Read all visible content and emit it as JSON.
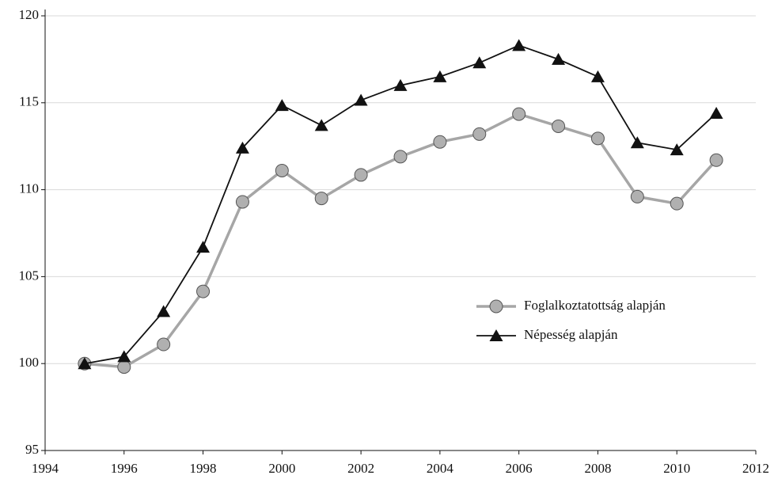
{
  "chart_data": {
    "type": "line",
    "x": [
      1995,
      1996,
      1997,
      1998,
      1999,
      2000,
      2001,
      2002,
      2003,
      2004,
      2005,
      2006,
      2007,
      2008,
      2009,
      2010,
      2011
    ],
    "series": [
      {
        "name": "Foglalkoztatottság alapján",
        "color": "#a6a6a6",
        "marker": "circle",
        "values": [
          100,
          99.8,
          101.1,
          104.15,
          109.3,
          111.1,
          109.5,
          110.85,
          111.9,
          112.75,
          113.2,
          114.35,
          113.65,
          112.95,
          109.6,
          109.2,
          111.7
        ]
      },
      {
        "name": "Népesség alapján",
        "color": "#111111",
        "marker": "triangle",
        "values": [
          100,
          100.4,
          103,
          106.7,
          112.4,
          114.85,
          113.7,
          115.15,
          116,
          116.5,
          117.3,
          118.3,
          117.5,
          116.5,
          112.7,
          112.3,
          114.4
        ]
      }
    ],
    "xlim": [
      1994,
      2012
    ],
    "xticks": [
      1994,
      1996,
      1998,
      2000,
      2002,
      2004,
      2006,
      2008,
      2010,
      2012
    ],
    "ylim": [
      95,
      120
    ],
    "yticks": [
      95,
      100,
      105,
      110,
      115,
      120
    ],
    "grid": true,
    "legend": "right"
  }
}
